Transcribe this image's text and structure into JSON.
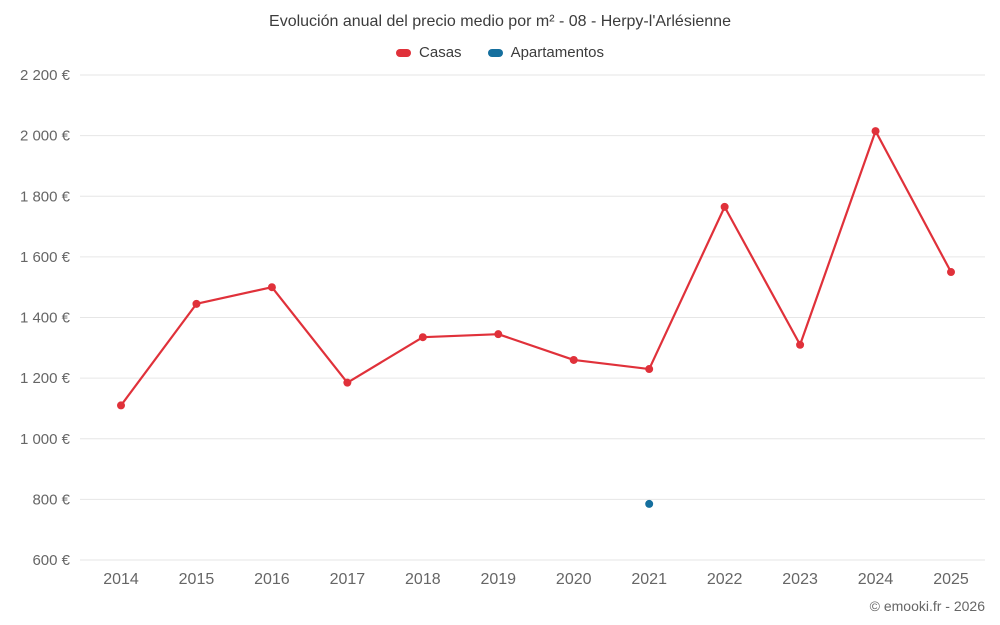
{
  "page": {
    "copyright": "© emooki.fr - 2026"
  },
  "chart_data": {
    "type": "line",
    "title": "Evolución anual del precio medio por m² - 08 - Herpy-l'Arlésienne",
    "x": [
      2014,
      2015,
      2016,
      2017,
      2018,
      2019,
      2020,
      2021,
      2022,
      2023,
      2024,
      2025
    ],
    "series": [
      {
        "name": "Casas",
        "color": "#e0313a",
        "values": [
          1110,
          1445,
          1500,
          1185,
          1335,
          1345,
          1260,
          1230,
          1765,
          1310,
          2015,
          1550
        ]
      },
      {
        "name": "Apartamentos",
        "color": "#156f9e",
        "values": [
          null,
          null,
          null,
          null,
          null,
          null,
          null,
          785,
          null,
          null,
          null,
          null
        ]
      }
    ],
    "ylabel": "",
    "xlabel": "",
    "ylim": [
      600,
      2200
    ],
    "ytick_step": 200,
    "ytick_suffix": "€",
    "grid": "horizontal",
    "legend_position": "top",
    "gridline_color": "#e6e6e6"
  }
}
